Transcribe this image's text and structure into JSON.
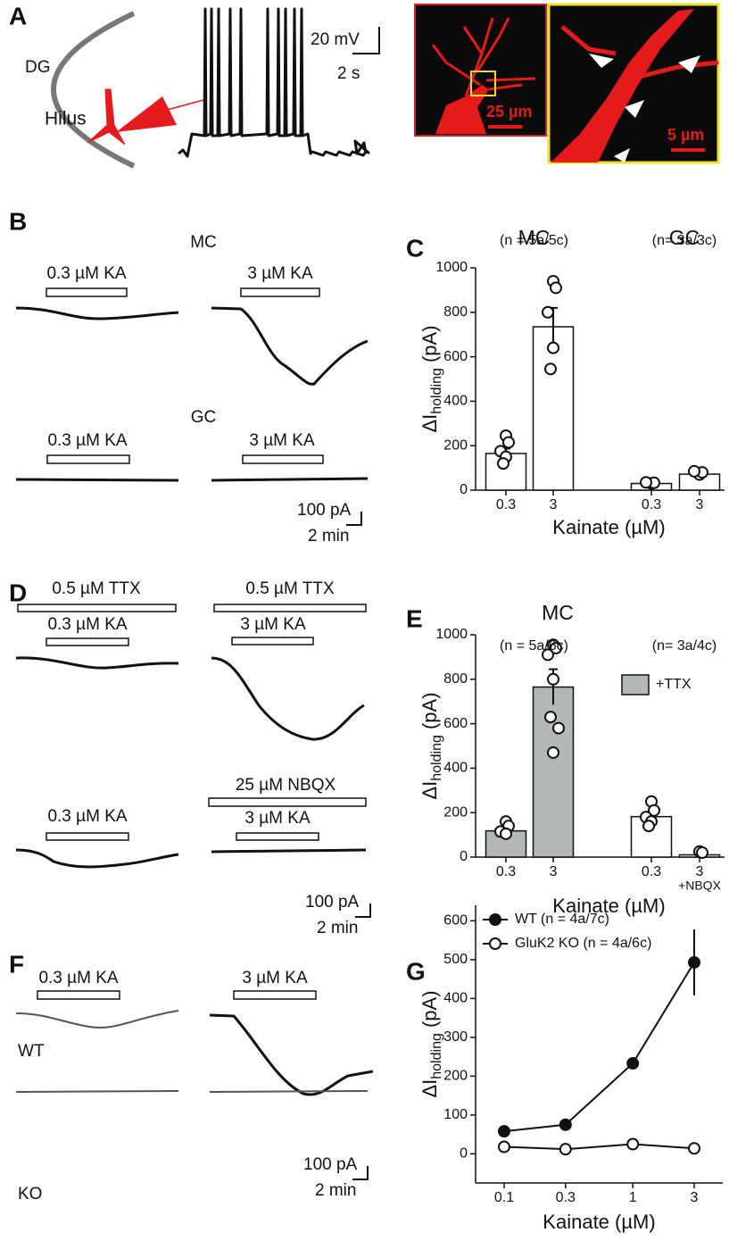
{
  "panel_a": {
    "label": "A",
    "region": "DG",
    "area": "Hilus",
    "scale_v": "20 mV",
    "scale_t": "2 s",
    "scale_img1": "25 µm",
    "scale_img2": "5 µm"
  },
  "panel_b": {
    "label": "B",
    "cell_1": "MC",
    "cell_2": "GC",
    "drug_1": "0.3 µM KA",
    "drug_2": "3 µM KA",
    "drug_3": "0.3 µM KA",
    "drug_4": "3 µM KA",
    "scale_i": "100 pA",
    "scale_t": "2 min"
  },
  "panel_d": {
    "label": "D",
    "drug_1": "0.5 µM TTX",
    "drug_2": "0.3 µM KA",
    "drug_3": "0.5 µM TTX",
    "drug_4": "3 µM KA",
    "drug_5": "0.3 µM KA",
    "drug_6": "25 µM NBQX",
    "drug_7": "3 µM KA",
    "scale_i": "100 pA",
    "scale_t": "2 min"
  },
  "panel_f": {
    "label": "F",
    "drug_1": "0.3 µM KA",
    "drug_2": "3 µM KA",
    "genotype_1": "WT",
    "genotype_2": "KO",
    "scale_i": "100 pA",
    "scale_t": "2 min"
  },
  "chart_data": [
    {
      "type": "bar",
      "label": "C",
      "groups": [
        {
          "name": "MC",
          "n": "(n = 5a/5c)"
        },
        {
          "name": "GC",
          "n": "(n= 3a/3c)"
        }
      ],
      "categories": [
        "0.3",
        "3",
        "0.3",
        "3"
      ],
      "values": [
        165,
        735,
        30,
        72
      ],
      "errors": [
        22,
        85,
        4,
        6
      ],
      "points": [
        [
          245,
          215,
          175,
          150,
          120
        ],
        [
          940,
          910,
          800,
          640,
          545
        ],
        [
          30,
          33,
          35
        ],
        [
          70,
          80,
          85
        ]
      ],
      "colors": [
        "#ffffff",
        "#ffffff",
        "#ffffff",
        "#ffffff"
      ],
      "ylim": [
        0,
        1000
      ],
      "yticks": [
        0,
        200,
        400,
        600,
        800,
        1000
      ],
      "x_label": "Kainate (µM)",
      "y_label": {
        "main": "ΔI",
        "sub": "holding",
        "unit": " (pA)"
      }
    },
    {
      "type": "bar",
      "label": "E",
      "title": "MC",
      "groups": [
        {
          "n": "(n = 5a/6c)"
        },
        {
          "n": "(n= 3a/4c)"
        }
      ],
      "categories": [
        "0.3",
        "3",
        "0.3",
        "3"
      ],
      "category_notes": [
        null,
        null,
        null,
        "+NBQX"
      ],
      "values": [
        118,
        765,
        182,
        10
      ],
      "errors": [
        10,
        80,
        20,
        4
      ],
      "points": [
        [
          160,
          140,
          115,
          105
        ],
        [
          955,
          940,
          910,
          800,
          630,
          580,
          470
        ],
        [
          250,
          210,
          180,
          160,
          140
        ],
        [
          25,
          20
        ]
      ],
      "colors": [
        "#b3b8b5",
        "#b3b8b5",
        "#ffffff",
        "#ffffff"
      ],
      "legend": {
        "name": "+TTX",
        "color": "#b3b8b5"
      },
      "ylim": [
        0,
        1000
      ],
      "yticks": [
        0,
        200,
        400,
        600,
        800,
        1000
      ],
      "x_label": "Kainate (µM)",
      "y_label": {
        "main": "ΔI",
        "sub": "holding",
        "unit": " (pA)"
      }
    },
    {
      "type": "line",
      "label": "G",
      "log_x": true,
      "x": [
        0.1,
        0.3,
        1,
        3
      ],
      "xlim": [
        0.06,
        5
      ],
      "xticks": [
        0.1,
        0.3,
        1,
        3
      ],
      "ylim": [
        -75,
        640
      ],
      "yticks": [
        0,
        100,
        200,
        300,
        400,
        500,
        600
      ],
      "series": [
        {
          "name": "WT (n = 4a/7c)",
          "color": "#111111",
          "filled": true,
          "values": [
            58,
            75,
            233,
            493
          ],
          "errors": [
            8,
            10,
            12,
            85
          ]
        },
        {
          "name": "GluK2 KO (n = 4a/6c)",
          "color": "#111111",
          "filled": false,
          "values": [
            18,
            12,
            25,
            14
          ],
          "errors": [
            5,
            8,
            6,
            6
          ]
        }
      ],
      "x_label": "Kainate (µM)",
      "y_label": {
        "main": "ΔI",
        "sub": "holding",
        "unit": " (pA)"
      }
    }
  ]
}
